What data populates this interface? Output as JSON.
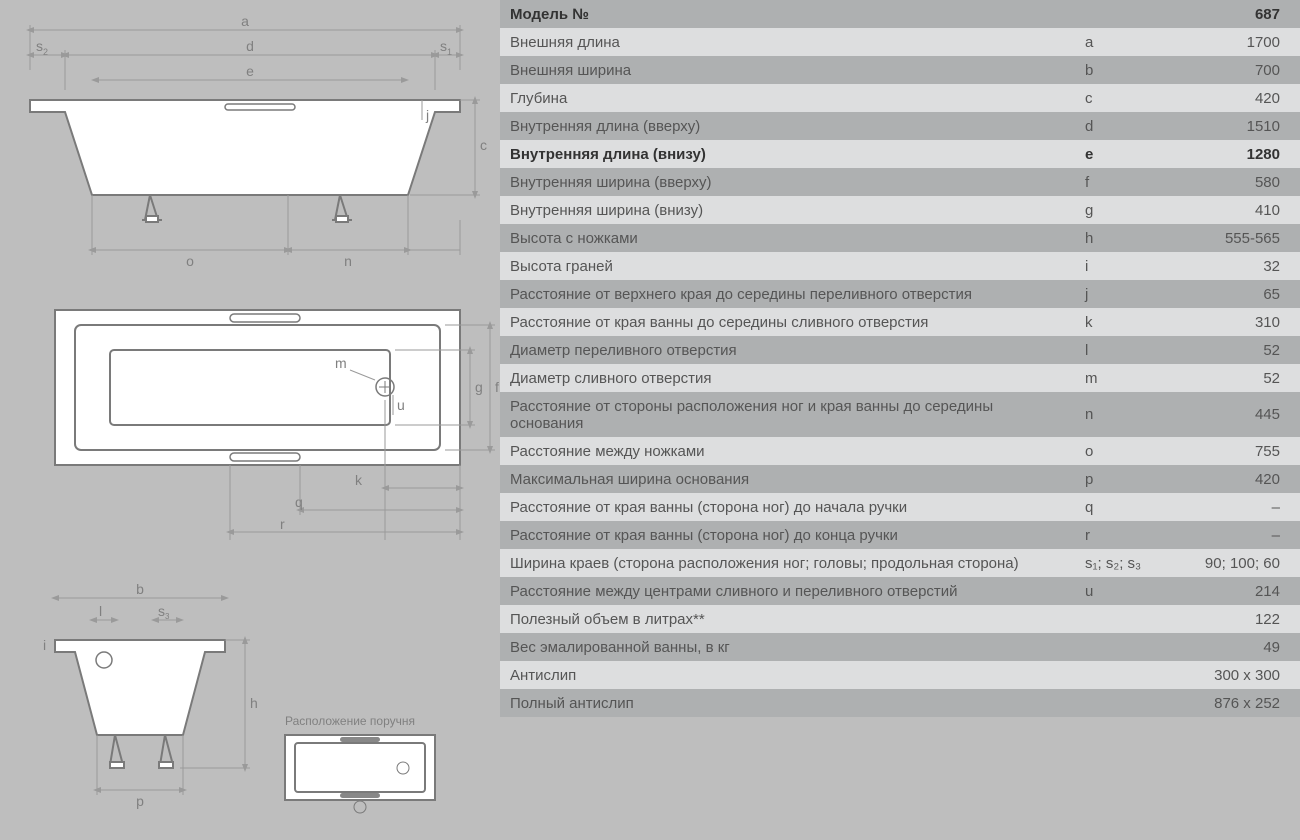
{
  "handle_label": "Расположение поручня",
  "table": {
    "columns": [
      "label",
      "symbol",
      "value"
    ],
    "row_colors": {
      "alt": "#aeb0b1",
      "plain": "#dddedf"
    },
    "font_size": 15,
    "text_color": "#555555",
    "bold_text_color": "#333333",
    "rows": [
      {
        "label": "Модель №",
        "symbol": "",
        "value": "687",
        "bold": true,
        "alt": true
      },
      {
        "label": "Внешняя длина",
        "symbol": "a",
        "value": "1700",
        "bold": false,
        "alt": false
      },
      {
        "label": "Внешняя ширина",
        "symbol": "b",
        "value": "700",
        "bold": false,
        "alt": true
      },
      {
        "label": "Глубина",
        "symbol": "c",
        "value": "420",
        "bold": false,
        "alt": false
      },
      {
        "label": "Внутренняя длина (вверху)",
        "symbol": "d",
        "value": "1510",
        "bold": false,
        "alt": true
      },
      {
        "label": "Внутренняя длина (внизу)",
        "symbol": "e",
        "value": "1280",
        "bold": true,
        "alt": false
      },
      {
        "label": "Внутренняя ширина (вверху)",
        "symbol": "f",
        "value": "580",
        "bold": false,
        "alt": true
      },
      {
        "label": "Внутренняя ширина (внизу)",
        "symbol": "g",
        "value": "410",
        "bold": false,
        "alt": false
      },
      {
        "label": "Высота с ножками",
        "symbol": "h",
        "value": "555-565",
        "bold": false,
        "alt": true
      },
      {
        "label": "Высота граней",
        "symbol": "i",
        "value": "32",
        "bold": false,
        "alt": false
      },
      {
        "label": "Расстояние от верхнего края до середины переливного отверстия",
        "symbol": "j",
        "value": "65",
        "bold": false,
        "alt": true
      },
      {
        "label": "Расстояние от края ванны до середины сливного отверстия",
        "symbol": "k",
        "value": "310",
        "bold": false,
        "alt": false
      },
      {
        "label": "Диаметр переливного отверстия",
        "symbol": "l",
        "value": "52",
        "bold": false,
        "alt": true
      },
      {
        "label": "Диаметр сливного отверстия",
        "symbol": "m",
        "value": "52",
        "bold": false,
        "alt": false
      },
      {
        "label": "Расстояние от стороны расположения ног и края ванны до середины основания",
        "symbol": "n",
        "value": "445",
        "bold": false,
        "alt": true
      },
      {
        "label": "Расстояние между ножками",
        "symbol": "o",
        "value": "755",
        "bold": false,
        "alt": false
      },
      {
        "label": "Максимальная ширина основания",
        "symbol": "p",
        "value": "420",
        "bold": false,
        "alt": true
      },
      {
        "label": "Расстояние от края ванны (сторона ног) до начала ручки",
        "symbol": "q",
        "value": "–",
        "bold": false,
        "alt": false
      },
      {
        "label": "Расстояние от края ванны (сторона ног) до конца ручки",
        "symbol": "r",
        "value": "–",
        "bold": false,
        "alt": true
      },
      {
        "label": "Ширина краев (сторона расположения ног; головы; продольная сторона)",
        "symbol": "s₁; s₂; s₃",
        "value": "90; 100; 60",
        "bold": false,
        "alt": false
      },
      {
        "label": "Расстояние между центрами сливного и переливного отверстий",
        "symbol": "u",
        "value": "214",
        "bold": false,
        "alt": true
      },
      {
        "label": "Полезный объем в литрах**",
        "symbol": "",
        "value": "122",
        "bold": false,
        "alt": false
      },
      {
        "label": "Вес эмалированной ванны, в кг",
        "symbol": "",
        "value": "49",
        "bold": false,
        "alt": true
      },
      {
        "label": "Антислип",
        "symbol": "",
        "value": "300 x 300",
        "bold": false,
        "alt": false
      },
      {
        "label": "Полный антислип",
        "symbol": "",
        "value": "876 x 252",
        "bold": false,
        "alt": true
      }
    ]
  },
  "diagram": {
    "labels": {
      "a": "a",
      "d": "d",
      "e": "e",
      "s1": "s",
      "s1sub": "1",
      "s2": "s",
      "s2sub": "2",
      "c": "c",
      "o": "o",
      "n": "n",
      "j": "j",
      "m": "m",
      "g": "g",
      "f": "f",
      "k": "k",
      "q": "q",
      "r": "r",
      "u": "u",
      "b": "b",
      "l": "l",
      "s3": "s",
      "s3sub": "3",
      "h": "h",
      "p": "p",
      "i": "i"
    },
    "colors": {
      "outline": "#7a7a7a",
      "dim": "#9a9a9a",
      "fill": "#ffffff",
      "text": "#808080"
    }
  }
}
